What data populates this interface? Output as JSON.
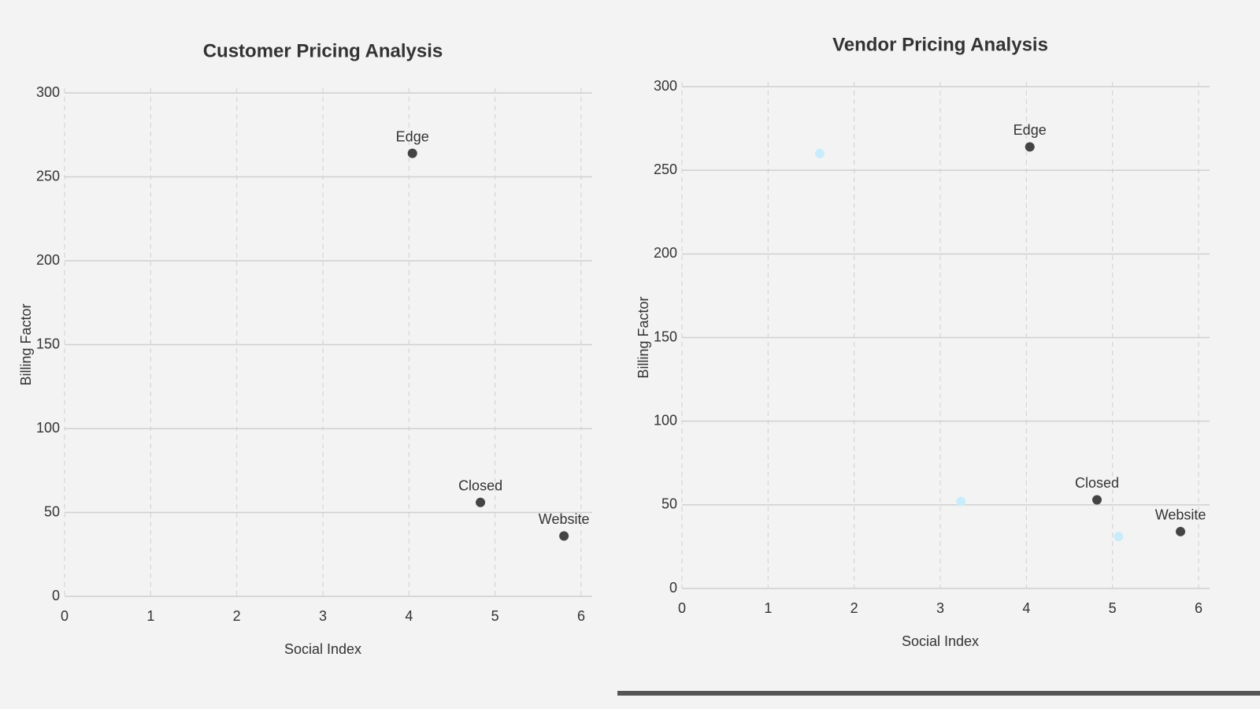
{
  "chart_data": [
    {
      "type": "scatter",
      "title": "Customer Pricing Analysis",
      "xlabel": "Social Index",
      "ylabel": "Billing Factor",
      "xlim": [
        0,
        6
      ],
      "ylim": [
        0,
        300
      ],
      "xticks": [
        0,
        1,
        2,
        3,
        4,
        5,
        6
      ],
      "yticks": [
        0,
        50,
        100,
        150,
        200,
        250,
        300
      ],
      "grid": true,
      "series": [
        {
          "color": "#444444",
          "x": [
            4.04,
            4.83,
            5.8
          ],
          "values": [
            264,
            56,
            36
          ],
          "labels": [
            "Edge",
            "Closed",
            "Website"
          ]
        }
      ]
    },
    {
      "type": "scatter",
      "title": "Vendor Pricing Analysis",
      "xlabel": "Social Index",
      "ylabel": "Billing Factor",
      "xlim": [
        0,
        6
      ],
      "ylim": [
        0,
        300
      ],
      "xticks": [
        0,
        1,
        2,
        3,
        4,
        5,
        6
      ],
      "yticks": [
        0,
        50,
        100,
        150,
        200,
        250,
        300
      ],
      "grid": true,
      "series": [
        {
          "color": "#444444",
          "x": [
            4.04,
            4.82,
            5.79
          ],
          "values": [
            264,
            53,
            34
          ],
          "labels": [
            "Edge",
            "Closed",
            "Website"
          ]
        },
        {
          "color": "#c9ecfb",
          "x": [
            1.6,
            3.24,
            5.07
          ],
          "values": [
            260,
            52,
            31
          ]
        }
      ]
    }
  ]
}
